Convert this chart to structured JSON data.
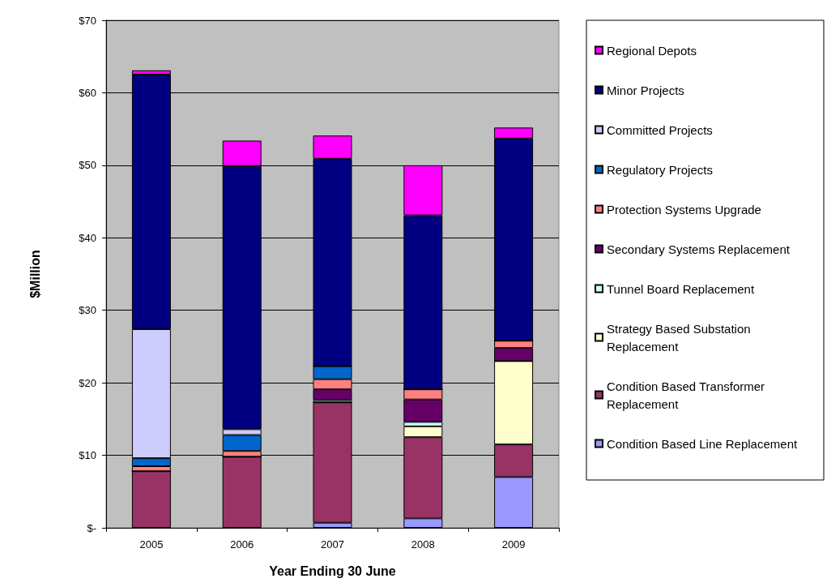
{
  "chart_data": {
    "type": "bar",
    "stacked": true,
    "xlabel": "Year Ending 30 June",
    "ylabel": "$Million",
    "categories": [
      "2005",
      "2006",
      "2007",
      "2008",
      "2009"
    ],
    "series": [
      {
        "name": "Condition Based Line Replacement",
        "color": "#9999ff",
        "values": [
          0,
          null,
          0.7,
          1.3,
          7.0
        ]
      },
      {
        "name": "Condition Based Transformer Replacement",
        "color": "#993366",
        "values": [
          7.8,
          9.8,
          16.6,
          11.2,
          4.5
        ]
      },
      {
        "name": "Strategy Based Substation Replacement",
        "color": "#ffffcc",
        "values": [
          0,
          0,
          0,
          1.5,
          11.5
        ]
      },
      {
        "name": "Tunnel Board Replacement",
        "color": "#ccffff",
        "values": [
          0,
          0,
          0.3,
          0.6,
          0
        ]
      },
      {
        "name": "Secondary Systems Replacement",
        "color": "#660066",
        "values": [
          0,
          0,
          1.5,
          3.1,
          1.8
        ]
      },
      {
        "name": "Protection Systems Upgrade",
        "color": "#ff8080",
        "values": [
          0.7,
          0.8,
          1.4,
          1.4,
          1.0
        ]
      },
      {
        "name": "Regulatory Projects",
        "color": "#0066cc",
        "values": [
          1.1,
          2.2,
          1.8,
          0,
          0
        ]
      },
      {
        "name": "Committed Projects",
        "color": "#ccccff",
        "values": [
          17.8,
          0.8,
          0,
          0,
          0
        ]
      },
      {
        "name": "Minor Projects",
        "color": "#000080",
        "values": [
          35.1,
          36.3,
          28.6,
          24.0,
          27.9
        ]
      },
      {
        "name": "Regional Depots",
        "color": "#ff00ff",
        "values": [
          0.6,
          3.5,
          3.2,
          6.9,
          1.5
        ]
      }
    ],
    "ylim": [
      0,
      70
    ],
    "yticks": [
      {
        "value": 0,
        "label": "$-"
      },
      {
        "value": 10,
        "label": "$10"
      },
      {
        "value": 20,
        "label": "$20"
      },
      {
        "value": 30,
        "label": "$30"
      },
      {
        "value": 40,
        "label": "$40"
      },
      {
        "value": 50,
        "label": "$50"
      },
      {
        "value": 60,
        "label": "$60"
      },
      {
        "value": 70,
        "label": "$70"
      }
    ],
    "grid": "y",
    "legend": "right"
  }
}
